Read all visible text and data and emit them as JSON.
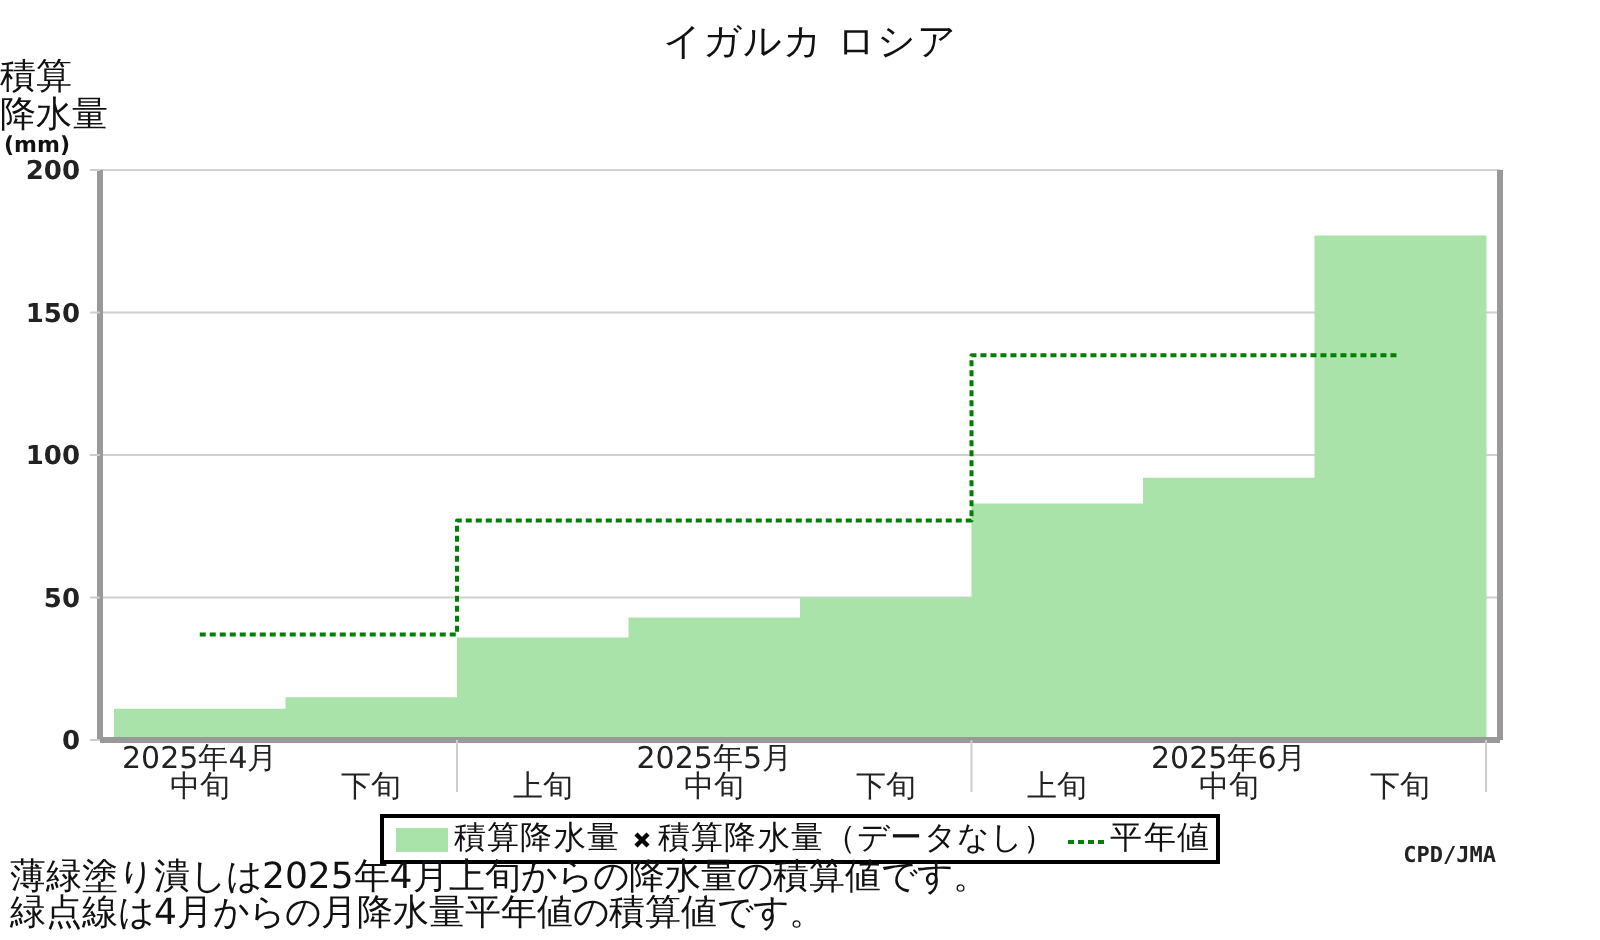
{
  "chart_data": {
    "type": "bar",
    "title": "イガルカ ロシア",
    "ylabel": "積算降水量(mm)",
    "categories": [
      "2025年4月中旬",
      "下旬",
      "上旬",
      "2025年5月中旬",
      "下旬",
      "上旬",
      "2025年6月中旬",
      "下旬"
    ],
    "series": [
      {
        "name": "積算降水量",
        "color": "#aae3aa",
        "values": [
          11,
          15,
          36,
          43,
          50,
          83,
          92,
          177
        ]
      },
      {
        "name": "積算降水量（データなし）",
        "type": "scatter",
        "color": "#000000",
        "marker": "cross",
        "values": [
          null,
          null,
          null,
          null,
          null,
          null,
          null,
          null
        ]
      },
      {
        "name": "平年値",
        "type": "step",
        "color": "#008000",
        "line_style": "dotted",
        "marker": "none",
        "values": [
          37,
          37,
          77,
          77,
          77,
          135,
          135,
          135
        ]
      }
    ],
    "ylim": [
      0,
      200
    ],
    "yticks": [
      0,
      50,
      100,
      150,
      200
    ],
    "grid": "y",
    "legend": "bottom",
    "annotations": [
      "薄緑塗り潰しは2025年4月上旬からの降水量の積算値です。",
      "緑点線は4月からの月降水量平年値の積算値です。",
      "CPD/JMA"
    ]
  }
}
